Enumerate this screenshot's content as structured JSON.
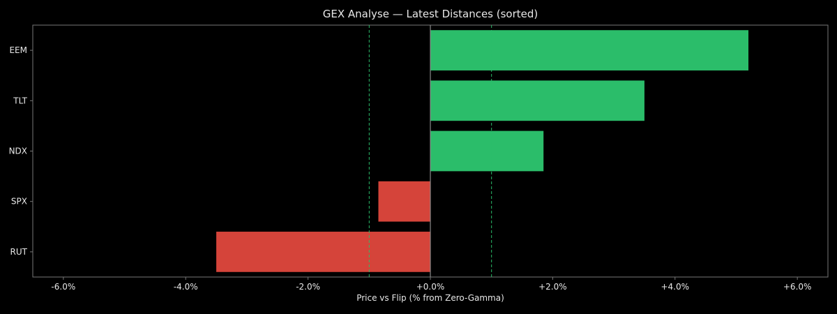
{
  "chart_data": {
    "type": "bar",
    "orientation": "horizontal",
    "title": "GEX Analyse — Latest Distances (sorted)",
    "xlabel": "Price vs Flip (% from Zero-Gamma)",
    "ylabel": "",
    "xlim": [
      -6.5,
      6.5
    ],
    "x_ticks": [
      -6,
      -4,
      -2,
      0,
      2,
      4,
      6
    ],
    "x_tick_labels": [
      "-6.0%",
      "-4.0%",
      "-2.0%",
      "+0.0%",
      "+2.0%",
      "+4.0%",
      "+6.0%"
    ],
    "categories": [
      "EEM",
      "TLT",
      "NDX",
      "SPX",
      "RUT"
    ],
    "values": [
      5.2,
      3.5,
      1.85,
      -0.85,
      -3.5
    ],
    "reference_lines": [
      -1.0,
      1.0
    ],
    "zero_line": 0,
    "grid": false,
    "colors": {
      "positive": "#2bbd6a",
      "negative": "#d5443a",
      "reference_line": "#2bbd6a",
      "zero_line": "#888888",
      "axes": "#777777",
      "background": "#000000",
      "text": "#e8e8e8"
    }
  }
}
